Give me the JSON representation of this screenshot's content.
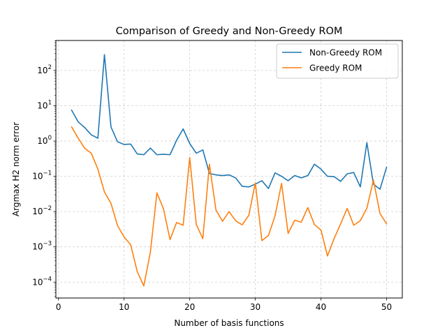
{
  "chart_data": {
    "type": "line",
    "title": "Comparison of Greedy and Non-Greedy ROM",
    "xlabel": "Number of basis functions",
    "ylabel": "Argmax H2 norm error",
    "yscale": "log",
    "xlim": [
      -0.4,
      52.4
    ],
    "ylim_exponent": [
      -4.45,
      2.85
    ],
    "grid": true,
    "grid_style": "dashed",
    "legend_position": "top-right",
    "xticks": [
      0,
      10,
      20,
      30,
      40,
      50
    ],
    "yticks_exponent": [
      -4,
      -3,
      -2,
      -1,
      0,
      1,
      2
    ],
    "x": [
      2,
      3,
      4,
      5,
      6,
      7,
      8,
      9,
      10,
      11,
      12,
      13,
      14,
      15,
      16,
      17,
      18,
      19,
      20,
      21,
      22,
      23,
      24,
      25,
      26,
      27,
      28,
      29,
      30,
      31,
      32,
      33,
      34,
      35,
      36,
      37,
      38,
      39,
      40,
      41,
      42,
      43,
      44,
      45,
      46,
      47,
      48,
      49,
      50
    ],
    "series": [
      {
        "name": "Non-Greedy ROM",
        "color": "#1f77b4",
        "values": [
          7.5,
          3.5,
          2.4,
          1.5,
          1.2,
          280,
          2.5,
          0.95,
          0.8,
          0.82,
          0.43,
          0.41,
          0.63,
          0.41,
          0.42,
          0.41,
          1.05,
          2.2,
          0.85,
          0.45,
          0.56,
          0.12,
          0.11,
          0.105,
          0.11,
          0.09,
          0.052,
          0.05,
          0.06,
          0.075,
          0.045,
          0.125,
          0.1,
          0.075,
          0.105,
          0.09,
          0.105,
          0.22,
          0.16,
          0.1,
          0.098,
          0.072,
          0.118,
          0.128,
          0.05,
          0.9,
          0.06,
          0.043,
          0.18
        ]
      },
      {
        "name": "Greedy ROM",
        "color": "#ff7f0e",
        "values": [
          2.5,
          1.2,
          0.62,
          0.45,
          0.16,
          0.036,
          0.017,
          0.004,
          0.0019,
          0.00115,
          0.0002,
          7.8e-05,
          0.0007,
          0.034,
          0.012,
          0.0016,
          0.0049,
          0.0041,
          0.34,
          0.0043,
          0.0017,
          0.22,
          0.011,
          0.0053,
          0.01,
          0.0055,
          0.0042,
          0.0078,
          0.065,
          0.0015,
          0.0021,
          0.0075,
          0.063,
          0.0024,
          0.0057,
          0.005,
          0.013,
          0.0043,
          0.003,
          0.00055,
          0.0017,
          0.0045,
          0.0123,
          0.0041,
          0.0055,
          0.0125,
          0.078,
          0.0088,
          0.0045
        ]
      }
    ]
  }
}
